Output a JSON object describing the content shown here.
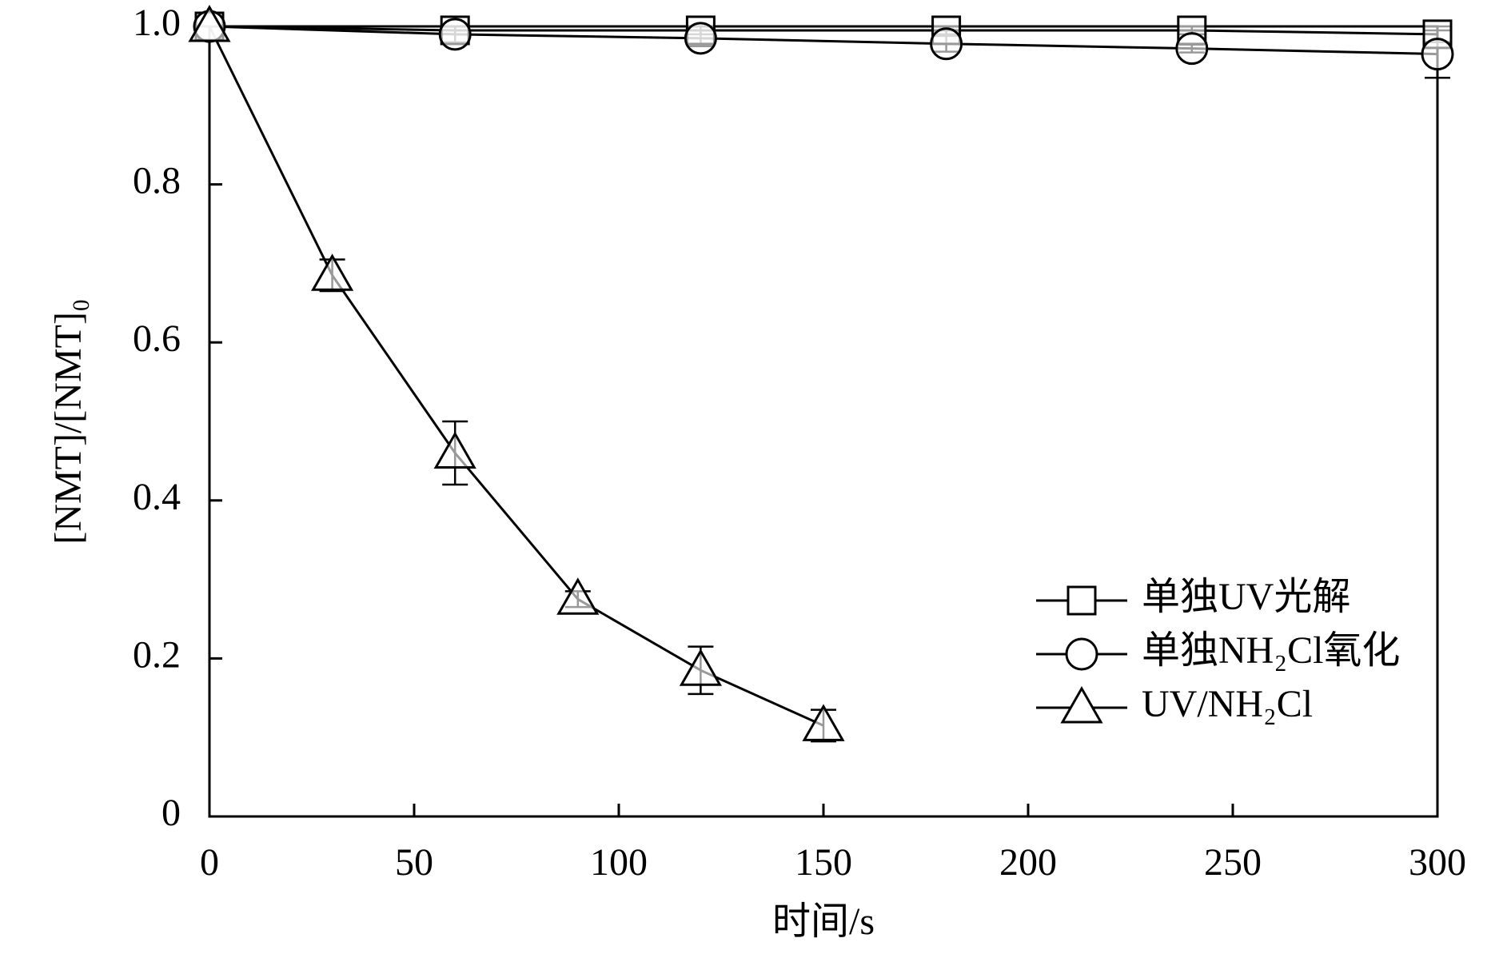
{
  "chart_data": {
    "type": "line",
    "xlabel": "时间/s",
    "ylabel": "[NMT]/[NMT]₀",
    "xlim": [
      0,
      300
    ],
    "xticks": [
      0,
      50,
      100,
      150,
      200,
      250,
      300
    ],
    "ylim": [
      0,
      1
    ],
    "yticks": [
      0,
      0.2,
      0.4,
      0.6,
      0.8,
      {
        "value": 1,
        "label": "1.0"
      }
    ],
    "legend": "right",
    "series": [
      {
        "name": "单独UV光解",
        "color": "#000000",
        "marker": "square",
        "x": [
          0,
          60,
          120,
          180,
          240,
          300
        ],
        "values": [
          1.0,
          0.995,
          0.995,
          0.995,
          0.995,
          0.99
        ],
        "errors": [
          0,
          0.005,
          0.005,
          0.005,
          0.005,
          0.01
        ]
      },
      {
        "name": "单独NH₂Cl氧化",
        "color": "#000000",
        "marker": "circle",
        "x": [
          0,
          60,
          120,
          180,
          240,
          300
        ],
        "values": [
          1.0,
          0.99,
          0.985,
          0.978,
          0.972,
          0.965
        ],
        "errors": [
          0,
          0.01,
          0.01,
          0.01,
          0.005,
          0.03
        ]
      },
      {
        "name": "UV/NH₂Cl",
        "color": "#000000",
        "marker": "triangle",
        "x": [
          0,
          30,
          60,
          90,
          120,
          150
        ],
        "values": [
          1.0,
          0.685,
          0.46,
          0.275,
          0.185,
          0.115
        ],
        "errors": [
          0,
          0.02,
          0.04,
          0.01,
          0.03,
          0.02
        ]
      }
    ]
  }
}
